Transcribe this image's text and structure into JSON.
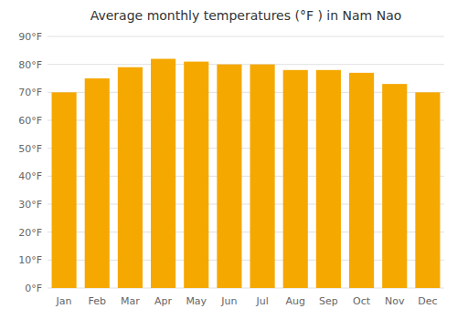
{
  "chart_data": {
    "type": "bar",
    "title": "Average monthly temperatures (°F ) in Nam Nao",
    "categories": [
      "Jan",
      "Feb",
      "Mar",
      "Apr",
      "May",
      "Jun",
      "Jul",
      "Aug",
      "Sep",
      "Oct",
      "Nov",
      "Dec"
    ],
    "values": [
      70,
      75,
      79,
      82,
      81,
      80,
      80,
      78,
      78,
      77,
      73,
      70
    ],
    "color": "#F5A800",
    "ylim": [
      0,
      90
    ],
    "yticks": [
      {
        "value": 0,
        "label": "0°F"
      },
      {
        "value": 10,
        "label": "10°F"
      },
      {
        "value": 20,
        "label": "20°F"
      },
      {
        "value": 30,
        "label": "30°F"
      },
      {
        "value": 40,
        "label": "40°F"
      },
      {
        "value": 50,
        "label": "50°F"
      },
      {
        "value": 60,
        "label": "60°F"
      },
      {
        "value": 70,
        "label": "70°F"
      },
      {
        "value": 80,
        "label": "80°F"
      },
      {
        "value": 90,
        "label": "90°F"
      }
    ],
    "grid": true
  }
}
